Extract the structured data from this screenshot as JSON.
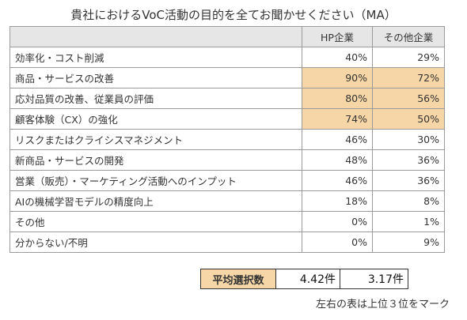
{
  "chart_data": {
    "type": "table",
    "title": "貴社におけるVoC活動の目的を全てお聞かせください（MA）",
    "columns": [
      "",
      "HP企業",
      "その他企業"
    ],
    "rows": [
      {
        "label": "効率化・コスト削減",
        "hp": "40%",
        "other": "29%",
        "hl": false
      },
      {
        "label": "商品・サービスの改善",
        "hp": "90%",
        "other": "72%",
        "hl": true
      },
      {
        "label": "応対品質の改善、従業員の評価",
        "hp": "80%",
        "other": "56%",
        "hl": true
      },
      {
        "label": "顧客体験（CX）の強化",
        "hp": "74%",
        "other": "50%",
        "hl": true
      },
      {
        "label": "リスクまたはクライシスマネジメント",
        "hp": "46%",
        "other": "30%",
        "hl": false
      },
      {
        "label": "新商品・サービスの開発",
        "hp": "48%",
        "other": "36%",
        "hl": false
      },
      {
        "label": "営業（販売）・マーケティング活動へのインプット",
        "hp": "46%",
        "other": "36%",
        "hl": false
      },
      {
        "label": "AIの機械学習モデルの精度向上",
        "hp": "18%",
        "other": "8%",
        "hl": false
      },
      {
        "label": "その他",
        "hp": "0%",
        "other": "1%",
        "hl": false
      },
      {
        "label": "分からない/不明",
        "hp": "0%",
        "other": "9%",
        "hl": false
      }
    ],
    "highlight_color": "#f6d6a6",
    "summary": {
      "label": "平均選択数",
      "hp": "4.42件",
      "other": "3.17件"
    },
    "note": "左右の表は上位３位をマーク"
  }
}
